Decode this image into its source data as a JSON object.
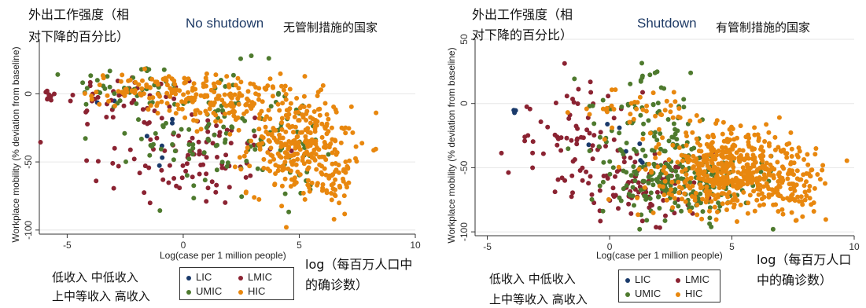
{
  "colors": {
    "LIC": "#1a3a6b",
    "LMIC": "#8b2332",
    "UMIC": "#4e7a2e",
    "HIC": "#e8870e",
    "grid": "#e6e6e6"
  },
  "left_panel": {
    "title": "No shutdown",
    "title_cn": "无管制措施的国家",
    "ylabel_cn_line1": "外出工作强度（相",
    "ylabel_cn_line2": "对下降的百分比）",
    "ylabel": "Workplace mobility (% deviation from baseline)",
    "xlabel": "Log(case per 1 million people)",
    "xlabel_cn_line1": "log（每百万人口中",
    "xlabel_cn_line2": "的确诊数）",
    "legend_cn_line1": "低收入   中低收入",
    "legend_cn_line2": "上中等收入  高收入",
    "legend": [
      {
        "key": "LIC",
        "label": "LIC"
      },
      {
        "key": "LMIC",
        "label": "LMIC"
      },
      {
        "key": "UMIC",
        "label": "UMIC"
      },
      {
        "key": "HIC",
        "label": "HIC"
      }
    ]
  },
  "right_panel": {
    "title": "Shutdown",
    "title_cn": "有管制措施的国家",
    "ylabel_cn_line1": "外出工作强度（相",
    "ylabel_cn_line2": "对下降的百分比）",
    "ylabel": "Workplace mobility (% deviation from baseline)",
    "xlabel": "Log(case per 1 million people)",
    "xlabel_cn_line1": "log（每百万人口",
    "xlabel_cn_line2": "中的确诊数）",
    "legend_cn_line1": "低收入   中低收入",
    "legend_cn_line2": "上中等收入  高收入",
    "legend": [
      {
        "key": "LIC",
        "label": "LIC"
      },
      {
        "key": "LMIC",
        "label": "LMIC"
      },
      {
        "key": "UMIC",
        "label": "UMIC"
      },
      {
        "key": "HIC",
        "label": "HIC"
      }
    ]
  },
  "chart_data": [
    {
      "type": "scatter",
      "title": "No shutdown",
      "xlabel": "Log(case per 1 million people)",
      "ylabel": "Workplace mobility (% deviation from baseline)",
      "xlim": [
        -6.2,
        10
      ],
      "ylim": [
        -103,
        40
      ],
      "xticks": [
        -5,
        0,
        5,
        10
      ],
      "yticks": [
        -100,
        -50,
        0
      ],
      "grid": true,
      "legend_position": "bottom",
      "series": [
        {
          "name": "LIC",
          "color_key": "LIC",
          "clusters": [
            {
              "cx": -3.8,
              "cy": -3,
              "sx": 0.3,
              "sy": 3,
              "n": 2
            },
            {
              "cx": -1.0,
              "cy": -37,
              "sx": 0.4,
              "sy": 12,
              "n": 6
            }
          ]
        },
        {
          "name": "LMIC",
          "color_key": "LMIC",
          "clusters": [
            {
              "cx": -5.8,
              "cy": -2,
              "sx": 0.2,
              "sy": 4,
              "n": 8
            },
            {
              "cx": -2.0,
              "cy": -5,
              "sx": 1.5,
              "sy": 10,
              "n": 40
            },
            {
              "cx": 0.5,
              "cy": -45,
              "sx": 1.8,
              "sy": 20,
              "n": 85
            },
            {
              "cx": -3.3,
              "cy": -52,
              "sx": 0.4,
              "sy": 10,
              "n": 6
            }
          ]
        },
        {
          "name": "UMIC",
          "color_key": "UMIC",
          "clusters": [
            {
              "cx": -2.2,
              "cy": 5,
              "sx": 1.3,
              "sy": 9,
              "n": 45
            },
            {
              "cx": 1.5,
              "cy": -30,
              "sx": 1.6,
              "sy": 24,
              "n": 100
            },
            {
              "cx": 5.0,
              "cy": -45,
              "sx": 0.6,
              "sy": 18,
              "n": 25
            }
          ]
        },
        {
          "name": "HIC",
          "color_key": "HIC",
          "clusters": [
            {
              "cx": -1.5,
              "cy": 3,
              "sx": 1.3,
              "sy": 6,
              "n": 80
            },
            {
              "cx": 2.0,
              "cy": -5,
              "sx": 1.5,
              "sy": 9,
              "n": 140
            },
            {
              "cx": 5.0,
              "cy": -38,
              "sx": 1.1,
              "sy": 18,
              "n": 280
            },
            {
              "cx": 6.4,
              "cy": -62,
              "sx": 0.6,
              "sy": 10,
              "n": 40
            }
          ]
        }
      ]
    },
    {
      "type": "scatter",
      "title": "Shutdown",
      "xlabel": "Log(case per 1 million people)",
      "ylabel": "Workplace mobility (% deviation from baseline)",
      "xlim": [
        -5.5,
        10
      ],
      "ylim": [
        -103,
        50
      ],
      "xticks": [
        -5,
        0,
        5,
        10
      ],
      "yticks": [
        -100,
        -50,
        0,
        50
      ],
      "grid": true,
      "legend_position": "bottom",
      "series": [
        {
          "name": "LIC",
          "color_key": "LIC",
          "clusters": [
            {
              "cx": -3.9,
              "cy": -5,
              "sx": 0.1,
              "sy": 2,
              "n": 3
            },
            {
              "cx": 0.5,
              "cy": -30,
              "sx": 1.0,
              "sy": 18,
              "n": 8
            }
          ]
        },
        {
          "name": "LMIC",
          "color_key": "LMIC",
          "clusters": [
            {
              "cx": -1.5,
              "cy": -30,
              "sx": 1.3,
              "sy": 20,
              "n": 70
            },
            {
              "cx": 1.3,
              "cy": -65,
              "sx": 1.5,
              "sy": 13,
              "n": 90
            }
          ]
        },
        {
          "name": "UMIC",
          "color_key": "UMIC",
          "clusters": [
            {
              "cx": 1.5,
              "cy": -20,
              "sx": 1.4,
              "sy": 22,
              "n": 90
            },
            {
              "cx": 2.9,
              "cy": -62,
              "sx": 1.4,
              "sy": 14,
              "n": 200
            }
          ]
        },
        {
          "name": "HIC",
          "color_key": "HIC",
          "clusters": [
            {
              "cx": 1.5,
              "cy": -5,
              "sx": 1.2,
              "sy": 8,
              "n": 40
            },
            {
              "cx": 5.0,
              "cy": -52,
              "sx": 1.5,
              "sy": 16,
              "n": 500
            },
            {
              "cx": 7.5,
              "cy": -68,
              "sx": 0.6,
              "sy": 12,
              "n": 60
            }
          ]
        }
      ]
    }
  ]
}
